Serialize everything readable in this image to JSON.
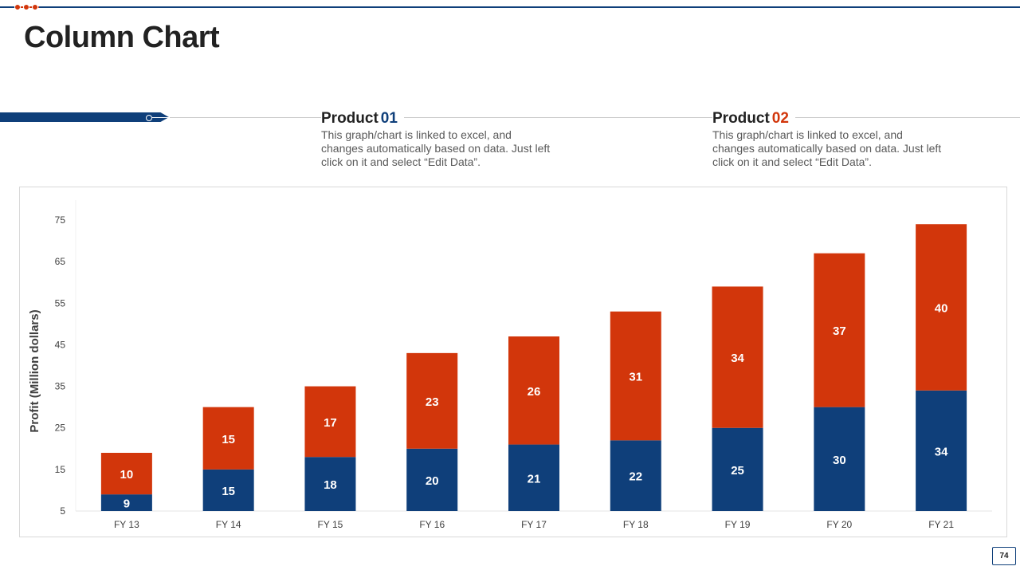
{
  "slide": {
    "title": "Column Chart",
    "page_number": "74",
    "accent_colors": {
      "blue": "#0f3f7a",
      "orange": "#d2360b"
    }
  },
  "products": [
    {
      "label": "Product",
      "number": "01",
      "description": "This graph/chart is linked to excel, and changes automatically based on data. Just left click on it and select “Edit Data”."
    },
    {
      "label": "Product",
      "number": "02",
      "description": "This graph/chart is linked to excel, and changes automatically based on data. Just left click on it and select “Edit Data”."
    }
  ],
  "chart_data": {
    "type": "bar",
    "stacked": true,
    "categories": [
      "FY 13",
      "FY 14",
      "FY 15",
      "FY 16",
      "FY 17",
      "FY 18",
      "FY 19",
      "FY 20",
      "FY 21"
    ],
    "series": [
      {
        "values": [
          9,
          15,
          18,
          20,
          21,
          22,
          25,
          30,
          34
        ],
        "color": "#0f3f7a"
      },
      {
        "values": [
          10,
          15,
          17,
          23,
          26,
          31,
          34,
          37,
          40
        ],
        "color": "#d2360b"
      }
    ],
    "ylabel": "Profit  (Million dollars)",
    "xlabel": "",
    "ylim": [
      5,
      75
    ],
    "yticks": [
      5,
      15,
      25,
      35,
      45,
      55,
      65,
      75
    ],
    "grid": false,
    "legend": "none"
  }
}
